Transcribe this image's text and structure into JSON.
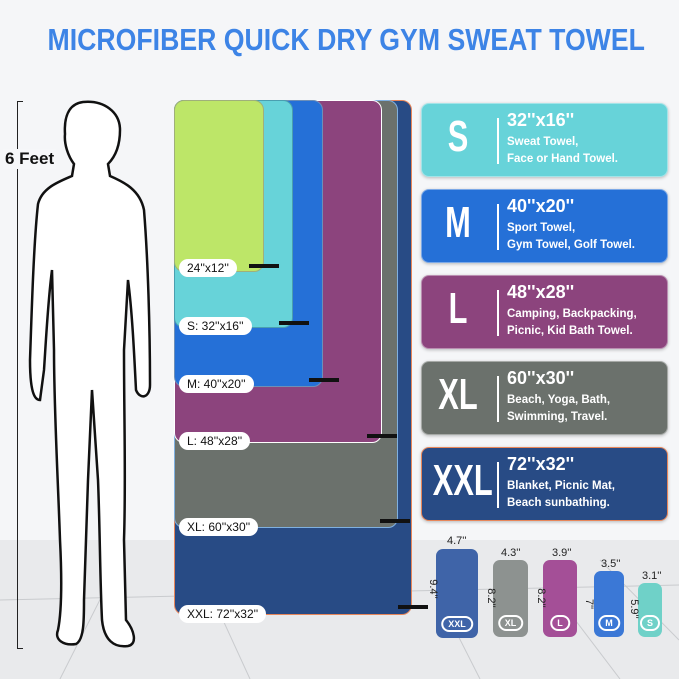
{
  "title": "MICROFIBER QUICK DRY GYM SWEAT TOWEL",
  "height_label": "6 Feet",
  "colors": {
    "title": "#3d84e6",
    "green": "#bde668",
    "cyan": "#67d3d9",
    "blue": "#2570d7",
    "purple": "#8c447d",
    "gray": "#6b716c",
    "navy": "#284b85"
  },
  "towel_labels": [
    "24''x12''",
    "S: 32''x16''",
    "M: 40''x20''",
    "L: 48''x28''",
    "XL: 60''x30''",
    "XXL: 72''x32''"
  ],
  "cards": [
    {
      "size": "S",
      "dims": "32''x16''",
      "uses": "Sweat Towel,\nFace or Hand Towel."
    },
    {
      "size": "M",
      "dims": "40''x20''",
      "uses": "Sport Towel,\nGym Towel, Golf Towel."
    },
    {
      "size": "L",
      "dims": "48''x28''",
      "uses": "Camping, Backpacking,\nPicnic, Kid Bath Towel."
    },
    {
      "size": "XL",
      "dims": "60''x30''",
      "uses": "Beach, Yoga, Bath,\nSwimming, Travel."
    },
    {
      "size": "XXL",
      "dims": "72''x32''",
      "uses": "Blanket, Picnic Mat,\nBeach sunbathing."
    }
  ],
  "rolls": [
    {
      "badge": "XXL",
      "width": "4.7''",
      "height": "9.4''"
    },
    {
      "badge": "XL",
      "width": "4.3''",
      "height": "8.2''"
    },
    {
      "badge": "L",
      "width": "3.9''",
      "height": "8.2''"
    },
    {
      "badge": "M",
      "width": "3.5''",
      "height": "7''"
    },
    {
      "badge": "S",
      "width": "3.1''",
      "height": "5.9''"
    }
  ]
}
